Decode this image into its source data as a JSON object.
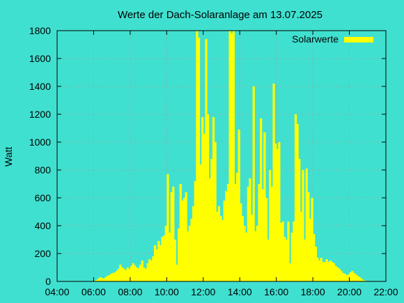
{
  "chart_data": {
    "type": "bar",
    "title": "Werte der Dach-Solaranlage am 13.07.2025",
    "xlabel": "",
    "ylabel": "Watt",
    "xlim": [
      4,
      22
    ],
    "ylim": [
      0,
      1800
    ],
    "x_tick_labels": [
      "04:00",
      "06:00",
      "08:00",
      "10:00",
      "12:00",
      "14:00",
      "16:00",
      "18:00",
      "20:00",
      "22:00"
    ],
    "y_tick_labels": [
      "0",
      "200",
      "400",
      "600",
      "800",
      "1000",
      "1200",
      "1400",
      "1600",
      "1800"
    ],
    "grid": true,
    "legend": {
      "position": "top-right"
    },
    "colors": {
      "background": "#40e0d0",
      "series": "#ffff00"
    },
    "series": [
      {
        "name": "Solarwerte",
        "points": [
          [
            6.0,
            5
          ],
          [
            6.1,
            10
          ],
          [
            6.2,
            20
          ],
          [
            6.3,
            30
          ],
          [
            6.4,
            25
          ],
          [
            6.5,
            20
          ],
          [
            6.6,
            30
          ],
          [
            6.7,
            40
          ],
          [
            6.8,
            45
          ],
          [
            6.9,
            55
          ],
          [
            7.0,
            60
          ],
          [
            7.1,
            65
          ],
          [
            7.2,
            75
          ],
          [
            7.3,
            90
          ],
          [
            7.4,
            120
          ],
          [
            7.5,
            100
          ],
          [
            7.6,
            90
          ],
          [
            7.7,
            80
          ],
          [
            7.8,
            100
          ],
          [
            7.9,
            90
          ],
          [
            8.0,
            110
          ],
          [
            8.1,
            130
          ],
          [
            8.2,
            115
          ],
          [
            8.3,
            100
          ],
          [
            8.4,
            95
          ],
          [
            8.5,
            120
          ],
          [
            8.6,
            150
          ],
          [
            8.7,
            100
          ],
          [
            8.8,
            90
          ],
          [
            8.9,
            130
          ],
          [
            9.0,
            160
          ],
          [
            9.1,
            150
          ],
          [
            9.2,
            180
          ],
          [
            9.3,
            260
          ],
          [
            9.4,
            230
          ],
          [
            9.5,
            290
          ],
          [
            9.6,
            260
          ],
          [
            9.7,
            320
          ],
          [
            9.8,
            330
          ],
          [
            9.9,
            400
          ],
          [
            10.0,
            770
          ],
          [
            10.1,
            350
          ],
          [
            10.2,
            640
          ],
          [
            10.3,
            680
          ],
          [
            10.4,
            300
          ],
          [
            10.5,
            120
          ],
          [
            10.6,
            380
          ],
          [
            10.7,
            700
          ],
          [
            10.8,
            580
          ],
          [
            10.9,
            600
          ],
          [
            11.0,
            640
          ],
          [
            11.1,
            360
          ],
          [
            11.2,
            400
          ],
          [
            11.3,
            450
          ],
          [
            11.4,
            540
          ],
          [
            11.5,
            720
          ],
          [
            11.6,
            1800
          ],
          [
            11.7,
            1750
          ],
          [
            11.8,
            840
          ],
          [
            11.9,
            1180
          ],
          [
            12.0,
            1060
          ],
          [
            12.1,
            1740
          ],
          [
            12.2,
            1200
          ],
          [
            12.3,
            740
          ],
          [
            12.4,
            880
          ],
          [
            12.5,
            1180
          ],
          [
            12.6,
            1000
          ],
          [
            12.7,
            500
          ],
          [
            12.8,
            540
          ],
          [
            12.9,
            470
          ],
          [
            13.0,
            440
          ],
          [
            13.1,
            580
          ],
          [
            13.2,
            650
          ],
          [
            13.3,
            700
          ],
          [
            13.4,
            1800
          ],
          [
            13.5,
            1780
          ],
          [
            13.6,
            1800
          ],
          [
            13.7,
            700
          ],
          [
            13.8,
            780
          ],
          [
            13.9,
            1090
          ],
          [
            14.0,
            560
          ],
          [
            14.1,
            470
          ],
          [
            14.2,
            400
          ],
          [
            14.3,
            350
          ],
          [
            14.4,
            680
          ],
          [
            14.5,
            740
          ],
          [
            14.6,
            480
          ],
          [
            14.7,
            1400
          ],
          [
            14.8,
            360
          ],
          [
            14.9,
            400
          ],
          [
            15.0,
            700
          ],
          [
            15.1,
            1170
          ],
          [
            15.2,
            660
          ],
          [
            15.3,
            1070
          ],
          [
            15.4,
            600
          ],
          [
            15.5,
            300
          ],
          [
            15.6,
            800
          ],
          [
            15.7,
            680
          ],
          [
            15.8,
            1420
          ],
          [
            15.9,
            990
          ],
          [
            16.0,
            950
          ],
          [
            16.1,
            1000
          ],
          [
            16.2,
            420
          ],
          [
            16.3,
            430
          ],
          [
            16.4,
            320
          ],
          [
            16.5,
            300
          ],
          [
            16.6,
            430
          ],
          [
            16.7,
            130
          ],
          [
            16.8,
            350
          ],
          [
            16.9,
            430
          ],
          [
            17.0,
            1200
          ],
          [
            17.1,
            1130
          ],
          [
            17.2,
            880
          ],
          [
            17.3,
            500
          ],
          [
            17.4,
            800
          ],
          [
            17.5,
            300
          ],
          [
            17.6,
            810
          ],
          [
            17.7,
            640
          ],
          [
            17.8,
            450
          ],
          [
            17.9,
            600
          ],
          [
            18.0,
            340
          ],
          [
            18.1,
            250
          ],
          [
            18.2,
            170
          ],
          [
            18.3,
            150
          ],
          [
            18.4,
            170
          ],
          [
            18.5,
            140
          ],
          [
            18.6,
            140
          ],
          [
            18.7,
            160
          ],
          [
            18.8,
            140
          ],
          [
            18.9,
            150
          ],
          [
            19.0,
            140
          ],
          [
            19.1,
            130
          ],
          [
            19.2,
            110
          ],
          [
            19.3,
            100
          ],
          [
            19.4,
            90
          ],
          [
            19.5,
            75
          ],
          [
            19.6,
            60
          ],
          [
            19.7,
            55
          ],
          [
            19.8,
            45
          ],
          [
            19.9,
            50
          ],
          [
            20.0,
            65
          ],
          [
            20.1,
            75
          ],
          [
            20.2,
            60
          ],
          [
            20.3,
            50
          ],
          [
            20.4,
            40
          ],
          [
            20.5,
            30
          ],
          [
            20.6,
            20
          ],
          [
            20.7,
            10
          ],
          [
            20.8,
            5
          ],
          [
            20.9,
            3
          ]
        ]
      }
    ]
  }
}
